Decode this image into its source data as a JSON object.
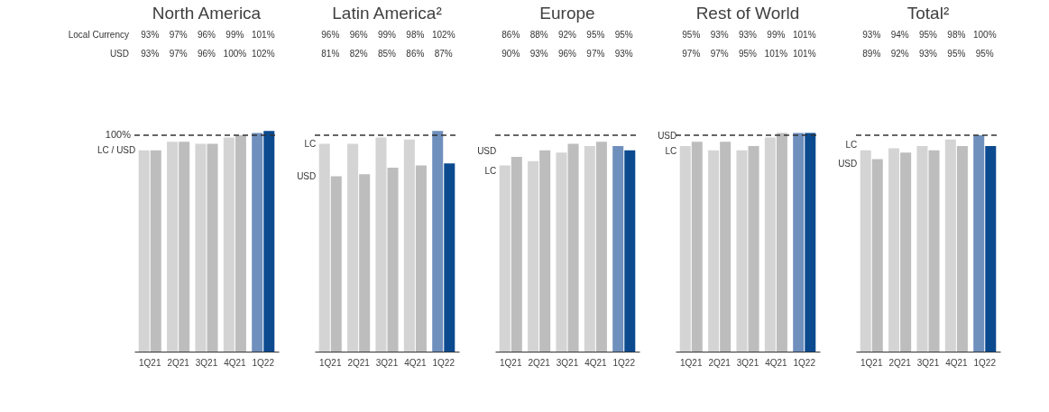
{
  "chart_data": [
    {
      "type": "bar",
      "title": "North America",
      "categories": [
        "1Q21",
        "2Q21",
        "3Q21",
        "4Q21",
        "1Q22"
      ],
      "tick_labels": "x",
      "series": [
        {
          "colors": [
            "#d4d4d4",
            "#d4d4d4",
            "#d4d4d4",
            "#d4d4d4",
            "#6f8fbd"
          ],
          "values": [
            93,
            97,
            96,
            99,
            101
          ],
          "value_labels": [
            "93%",
            "97%",
            "96%",
            "99%",
            "101%"
          ]
        },
        {
          "colors": [
            "#bdbdbd",
            "#bdbdbd",
            "#bdbdbd",
            "#bdbdbd",
            "#0b4a8f"
          ],
          "values": [
            93,
            97,
            96,
            100,
            102
          ],
          "value_labels": [
            "93%",
            "97%",
            "96%",
            "100%",
            "102%"
          ]
        }
      ],
      "ref_lines": [
        {
          "axis": "y",
          "value": 100,
          "label": "100%",
          "line_style": "dashed",
          "color": "#333333"
        }
      ],
      "annotations": [
        "Local Currency",
        "USD",
        {
          "text": "LC / USD",
          "x": "1Q21",
          "y": 93
        }
      ]
    },
    {
      "type": "bar",
      "title": "Latin America²",
      "categories": [
        "1Q21",
        "2Q21",
        "3Q21",
        "4Q21",
        "1Q22"
      ],
      "tick_labels": "x",
      "series": [
        {
          "colors": [
            "#d4d4d4",
            "#d4d4d4",
            "#d4d4d4",
            "#d4d4d4",
            "#6f8fbd"
          ],
          "values": [
            96,
            96,
            99,
            98,
            102
          ],
          "value_labels": [
            "96%",
            "96%",
            "99%",
            "98%",
            "102%"
          ]
        },
        {
          "colors": [
            "#bdbdbd",
            "#bdbdbd",
            "#bdbdbd",
            "#bdbdbd",
            "#0b4a8f"
          ],
          "values": [
            81,
            82,
            85,
            86,
            87
          ],
          "value_labels": [
            "81%",
            "82%",
            "85%",
            "86%",
            "87%"
          ]
        }
      ],
      "ref_lines": [
        {
          "axis": "y",
          "value": 100,
          "line_style": "dashed",
          "color": "#333333"
        }
      ],
      "annotations": [
        {
          "text": "LC",
          "x": "1Q21",
          "y": 96
        },
        {
          "text": "USD",
          "x": "1Q21",
          "y": 81
        }
      ]
    },
    {
      "type": "bar",
      "title": "Europe",
      "categories": [
        "1Q21",
        "2Q21",
        "3Q21",
        "4Q21",
        "1Q22"
      ],
      "tick_labels": "x",
      "series": [
        {
          "colors": [
            "#d4d4d4",
            "#d4d4d4",
            "#d4d4d4",
            "#d4d4d4",
            "#6f8fbd"
          ],
          "values": [
            86,
            88,
            92,
            95,
            95
          ],
          "value_labels": [
            "86%",
            "88%",
            "92%",
            "95%",
            "95%"
          ]
        },
        {
          "colors": [
            "#bdbdbd",
            "#bdbdbd",
            "#bdbdbd",
            "#bdbdbd",
            "#0b4a8f"
          ],
          "values": [
            90,
            93,
            96,
            97,
            93
          ],
          "value_labels": [
            "90%",
            "93%",
            "96%",
            "97%",
            "93%"
          ]
        }
      ],
      "ref_lines": [
        {
          "axis": "y",
          "value": 100,
          "line_style": "dashed",
          "color": "#333333"
        }
      ],
      "annotations": [
        {
          "text": "USD",
          "x": "1Q21",
          "y": 90
        },
        {
          "text": "LC",
          "x": "1Q21",
          "y": 86
        }
      ]
    },
    {
      "type": "bar",
      "title": "Rest of World",
      "categories": [
        "1Q21",
        "2Q21",
        "3Q21",
        "4Q21",
        "1Q22"
      ],
      "tick_labels": "x",
      "series": [
        {
          "colors": [
            "#d4d4d4",
            "#d4d4d4",
            "#d4d4d4",
            "#d4d4d4",
            "#6f8fbd"
          ],
          "values": [
            95,
            93,
            93,
            99,
            101
          ],
          "value_labels": [
            "95%",
            "93%",
            "93%",
            "99%",
            "101%"
          ]
        },
        {
          "colors": [
            "#bdbdbd",
            "#bdbdbd",
            "#bdbdbd",
            "#bdbdbd",
            "#0b4a8f"
          ],
          "values": [
            97,
            97,
            95,
            101,
            101
          ],
          "value_labels": [
            "97%",
            "97%",
            "95%",
            "101%",
            "101%"
          ]
        }
      ],
      "ref_lines": [
        {
          "axis": "y",
          "value": 100,
          "line_style": "dashed",
          "color": "#333333"
        }
      ],
      "annotations": [
        {
          "text": "USD",
          "x": "1Q21",
          "y": 97
        },
        {
          "text": "LC",
          "x": "1Q21",
          "y": 95
        }
      ]
    },
    {
      "type": "bar",
      "title": "Total²",
      "categories": [
        "1Q21",
        "2Q21",
        "3Q21",
        "4Q21",
        "1Q22"
      ],
      "tick_labels": "x",
      "series": [
        {
          "colors": [
            "#d4d4d4",
            "#d4d4d4",
            "#d4d4d4",
            "#d4d4d4",
            "#6f8fbd"
          ],
          "values": [
            93,
            94,
            95,
            98,
            100
          ],
          "value_labels": [
            "93%",
            "94%",
            "95%",
            "98%",
            "100%"
          ]
        },
        {
          "colors": [
            "#bdbdbd",
            "#bdbdbd",
            "#bdbdbd",
            "#bdbdbd",
            "#0b4a8f"
          ],
          "values": [
            89,
            92,
            93,
            95,
            95
          ],
          "value_labels": [
            "89%",
            "92%",
            "93%",
            "95%",
            "95%"
          ]
        }
      ],
      "ref_lines": [
        {
          "axis": "y",
          "value": 100,
          "line_style": "dashed",
          "color": "#333333"
        }
      ],
      "annotations": [
        {
          "text": "LC",
          "x": "1Q21",
          "y": 93
        },
        {
          "text": "USD",
          "x": "1Q21",
          "y": 89
        }
      ]
    }
  ]
}
